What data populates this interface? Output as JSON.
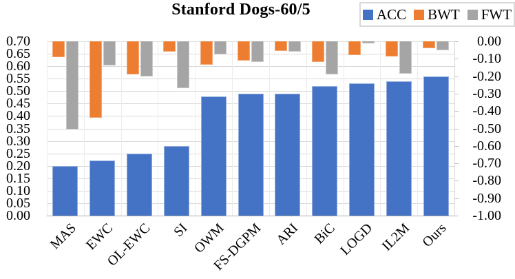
{
  "title": "Stanford Dogs-60/5",
  "legend": [
    {
      "label": "ACC",
      "color": "#4472C4"
    },
    {
      "label": "BWT",
      "color": "#ED7D31"
    },
    {
      "label": "FWT",
      "color": "#A5A5A5"
    }
  ],
  "chart_data": {
    "type": "bar",
    "title": "Stanford Dogs-60/5",
    "categories": [
      "MAS",
      "EWC",
      "OL-EWC",
      "SI",
      "OWM",
      "FS-DGPM",
      "ARI",
      "BiC",
      "LOGD",
      "IL2M",
      "Ours"
    ],
    "series": [
      {
        "name": "ACC",
        "axis": "left",
        "color": "#4472C4",
        "values": [
          0.2,
          0.22,
          0.25,
          0.28,
          0.48,
          0.49,
          0.49,
          0.52,
          0.53,
          0.54,
          0.56
        ]
      },
      {
        "name": "BWT",
        "axis": "right",
        "color": "#ED7D31",
        "values": [
          -0.09,
          -0.44,
          -0.19,
          -0.06,
          -0.135,
          -0.11,
          -0.055,
          -0.12,
          -0.08,
          -0.085,
          -0.04
        ]
      },
      {
        "name": "FWT",
        "axis": "right",
        "color": "#A5A5A5",
        "values": [
          -0.505,
          -0.14,
          -0.2,
          -0.27,
          -0.075,
          -0.12,
          -0.06,
          -0.19,
          -0.01,
          -0.185,
          -0.05
        ]
      }
    ],
    "left_axis": {
      "min": 0.0,
      "max": 0.7,
      "step": 0.05,
      "ticks": [
        "0.70",
        "0.65",
        "0.60",
        "0.55",
        "0.50",
        "0.45",
        "0.40",
        "0.35",
        "0.30",
        "0.25",
        "0.20",
        "0.15",
        "0.10",
        "0.05",
        "0.00"
      ]
    },
    "right_axis": {
      "min": -1.0,
      "max": 0.0,
      "step": 0.1,
      "ticks": [
        "0.00",
        "-0.10",
        "-0.20",
        "-0.30",
        "-0.40",
        "-0.50",
        "-0.60",
        "-0.70",
        "-0.80",
        "-0.90",
        "-1.00"
      ]
    },
    "grid": true,
    "legend_position": "top-right"
  }
}
